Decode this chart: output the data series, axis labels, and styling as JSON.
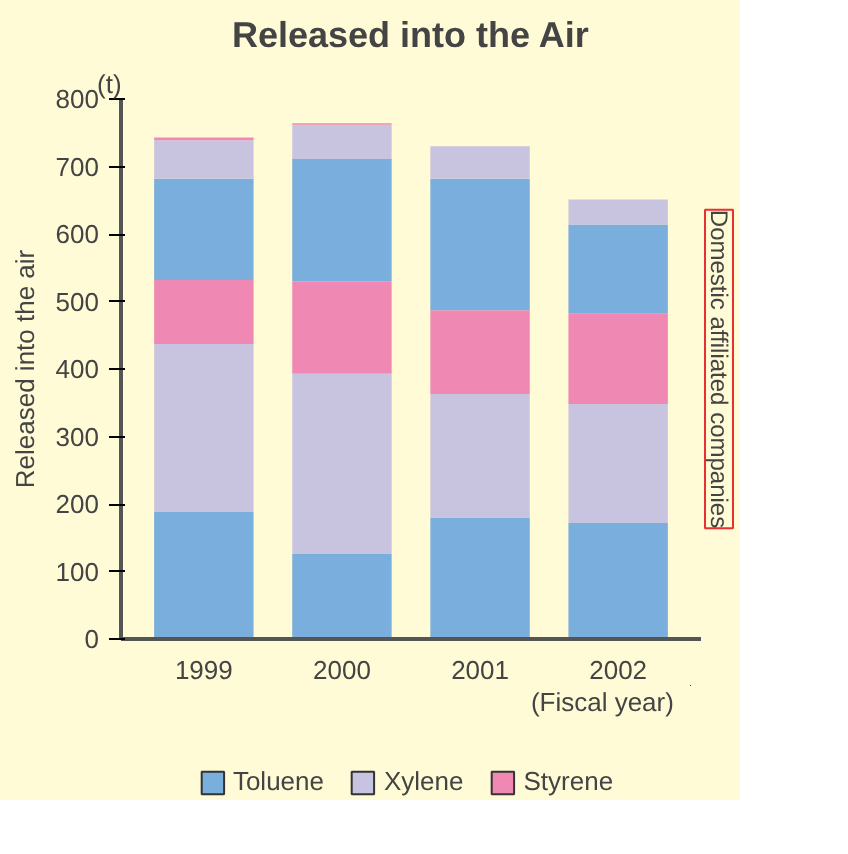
{
  "chart_data": {
    "type": "bar",
    "title": "Released into the Air",
    "ylabel": "Released into the air",
    "xlabel": "(Fiscal year)",
    "annotations": [
      "(t)",
      "Domestic affiliated companies"
    ],
    "categories": [
      "1999",
      "2000",
      "2001",
      "2002"
    ],
    "stacked": true,
    "ylim": [
      0,
      800
    ],
    "yticks": [
      0,
      100,
      200,
      300,
      400,
      500,
      600,
      700,
      800
    ],
    "grid": false,
    "legend": "bottom",
    "series": [
      {
        "name": "Toluene",
        "color": "#7aaedc",
        "values": [
          188,
          126,
          180,
          172
        ]
      },
      {
        "name": "Xylene",
        "color": "#c8c4e0",
        "values": [
          249,
          267,
          183,
          176
        ]
      },
      {
        "name": "Styrene",
        "color": "#f088b4",
        "values": [
          95,
          137,
          124,
          134
        ]
      },
      {
        "color": "#7aaedc",
        "values": [
          150,
          181,
          195,
          132
        ]
      },
      {
        "color": "#c8c4e0",
        "values": [
          57,
          51,
          48,
          37
        ]
      },
      {
        "color": "#f088b4",
        "values": [
          4,
          2,
          0,
          0
        ]
      }
    ]
  }
}
